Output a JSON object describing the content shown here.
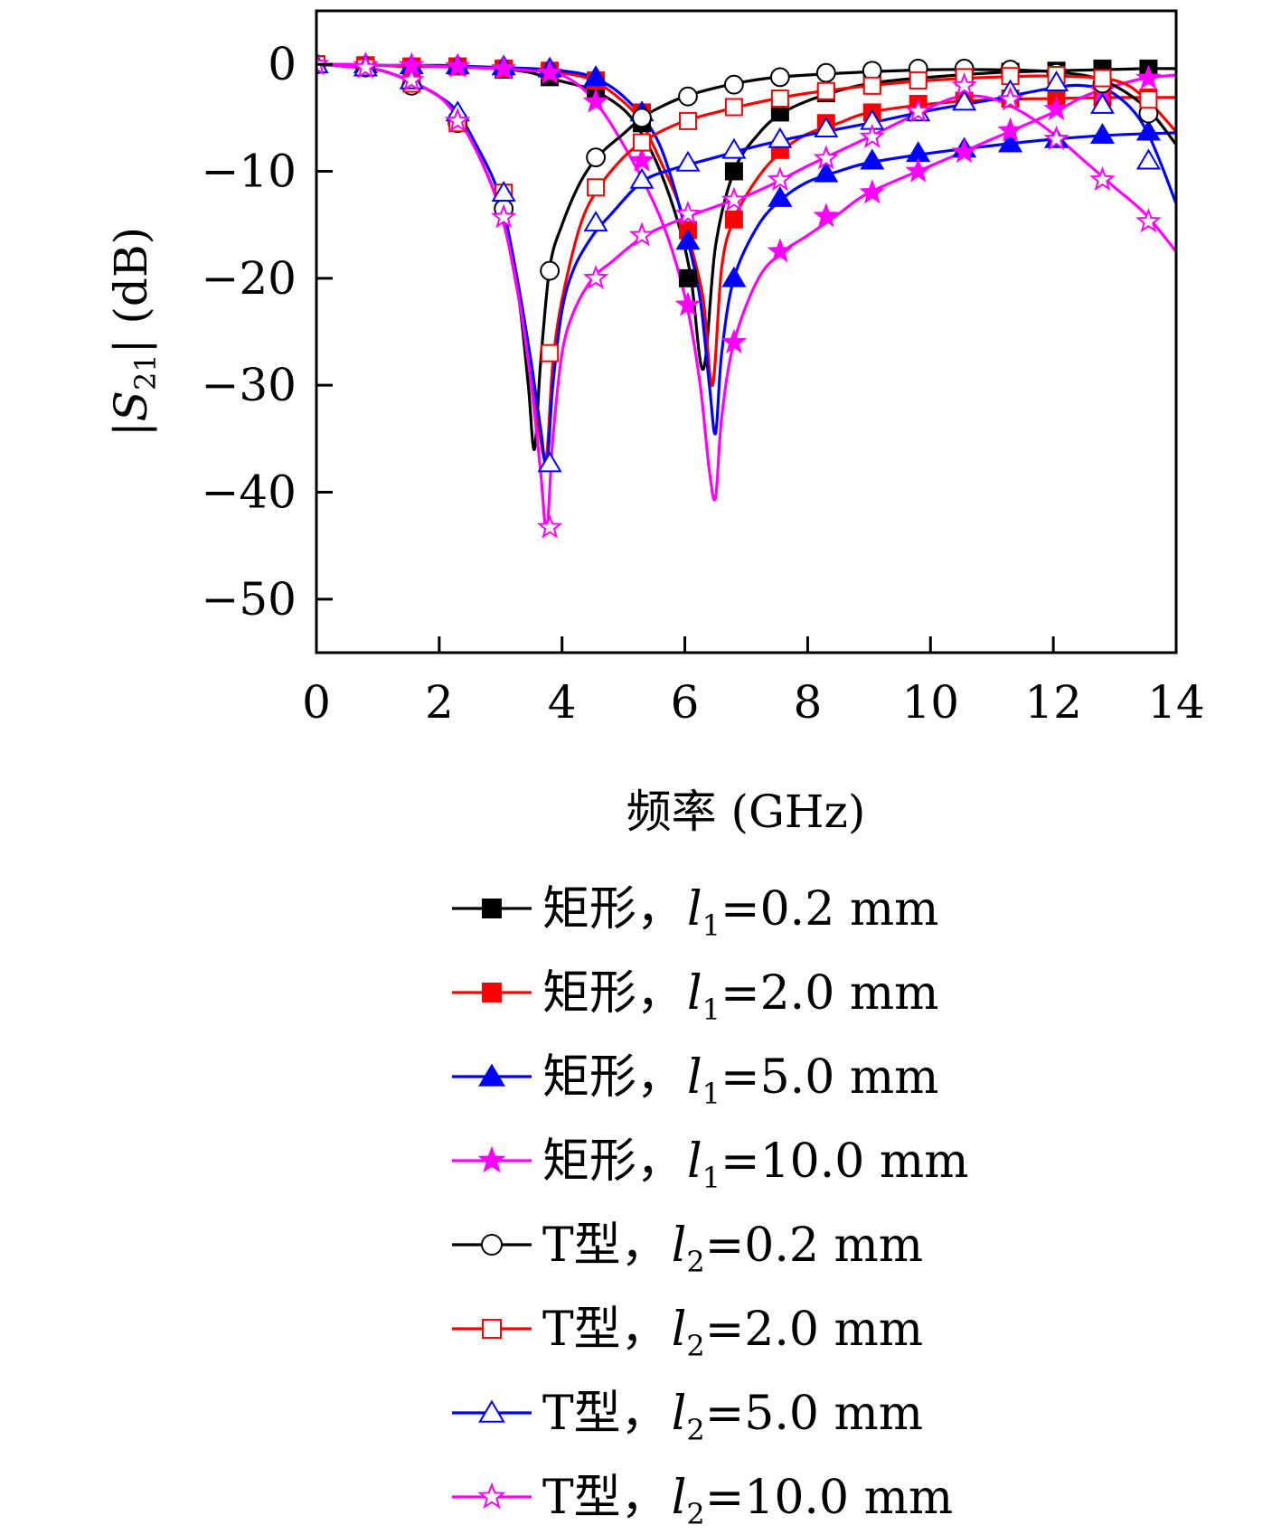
{
  "chart_data": {
    "type": "line",
    "xlabel": "频率 (GHz)",
    "ylabel_parts": {
      "left": "|",
      "sym": "S",
      "sub": "21",
      "right": "| (dB)"
    },
    "xlim": [
      0,
      14
    ],
    "ylim": [
      -55,
      5
    ],
    "xticks": [
      0,
      2,
      4,
      6,
      8,
      10,
      12,
      14
    ],
    "yticks": [
      0,
      -10,
      -20,
      -30,
      -40,
      -50
    ],
    "ytick_labels": [
      "0",
      "−10",
      "−20",
      "−30",
      "−40",
      "−50"
    ],
    "grid": false,
    "legend_position": "below",
    "series": [
      {
        "label_prefix": "矩形，",
        "param": "l",
        "param_sub": "1",
        "label_value": "=0.2 mm",
        "color": "#000000",
        "marker": "square",
        "filled": true,
        "x": [
          0,
          0.5,
          1,
          1.5,
          2,
          2.5,
          3,
          3.3,
          3.5,
          3.75,
          4,
          4.5,
          5,
          5.3,
          5.6,
          5.9,
          6.1,
          6.3,
          6.5,
          6.8,
          7.2,
          7.6,
          8.2,
          9,
          10,
          11,
          12,
          12.8,
          13.5,
          14
        ],
        "y": [
          0,
          -0.1,
          -0.1,
          -0.2,
          -0.2,
          -0.3,
          -0.4,
          -0.6,
          -0.8,
          -1.2,
          -1.6,
          -2.4,
          -4.2,
          -6.5,
          -10,
          -15,
          -20,
          -28.5,
          -17,
          -10,
          -6.5,
          -4.5,
          -3,
          -1.8,
          -1.2,
          -0.8,
          -0.6,
          -0.5,
          -0.4,
          -0.4
        ],
        "mx": [
          0,
          0.8,
          1.55,
          2.3,
          3.05,
          3.8,
          4.55,
          5.3,
          6.05,
          6.8,
          7.55,
          8.3,
          9.05,
          9.8,
          10.55,
          11.3,
          12.05,
          12.8,
          13.55
        ],
        "my": [
          0,
          -0.1,
          -0.2,
          -0.2,
          -0.5,
          -1.2,
          -2.4,
          -5.5,
          -20,
          -10,
          -4.5,
          -2.7,
          -1.8,
          -1.3,
          -0.9,
          -0.7,
          -0.6,
          -0.4,
          -0.4
        ]
      },
      {
        "label_prefix": "矩形，",
        "param": "l",
        "param_sub": "1",
        "label_value": "=2.0 mm",
        "color": "#ff0000",
        "marker": "square",
        "filled": true,
        "x": [
          0,
          0.5,
          1,
          1.5,
          2,
          2.5,
          3,
          3.5,
          4,
          4.5,
          5,
          5.3,
          5.6,
          5.9,
          6.1,
          6.3,
          6.45,
          6.6,
          6.8,
          7.2,
          7.6,
          8,
          8.5,
          9,
          10,
          11,
          12,
          13,
          14
        ],
        "y": [
          0,
          -0.1,
          -0.1,
          -0.2,
          -0.2,
          -0.3,
          -0.4,
          -0.5,
          -0.8,
          -1.5,
          -3.5,
          -5.5,
          -9,
          -13,
          -17,
          -22,
          -30,
          -19,
          -14.5,
          -10.5,
          -8,
          -6.5,
          -5.5,
          -4.5,
          -3.7,
          -3.3,
          -3.2,
          -3.1,
          -3.1
        ],
        "mx": [
          0,
          0.8,
          1.55,
          2.3,
          3.05,
          3.8,
          4.55,
          5.3,
          6.05,
          6.8,
          7.55,
          8.3,
          9.05,
          9.8,
          10.55,
          11.3,
          12.05,
          12.8,
          13.55
        ],
        "my": [
          0,
          -0.1,
          -0.2,
          -0.2,
          -0.4,
          -0.6,
          -1.5,
          -4.5,
          -15.5,
          -14.5,
          -8,
          -5.5,
          -4.5,
          -3.7,
          -3.4,
          -3.2,
          -3.2,
          -3.1,
          -3.1
        ]
      },
      {
        "label_prefix": "矩形，",
        "param": "l",
        "param_sub": "1",
        "label_value": "=5.0 mm",
        "color": "#0000ff",
        "marker": "triangle",
        "filled": true,
        "x": [
          0,
          0.5,
          1,
          1.5,
          2,
          2.5,
          3,
          3.5,
          4,
          4.5,
          5,
          5.5,
          5.8,
          6.05,
          6.25,
          6.4,
          6.5,
          6.6,
          6.8,
          7.2,
          7.6,
          8,
          8.5,
          9,
          10,
          11,
          12,
          13,
          14
        ],
        "y": [
          0,
          0,
          -0.1,
          -0.1,
          -0.1,
          -0.2,
          -0.3,
          -0.4,
          -0.6,
          -1.2,
          -3,
          -6.5,
          -11,
          -16.5,
          -22,
          -30,
          -34.5,
          -27,
          -20,
          -15,
          -12.5,
          -11,
          -10,
          -9.2,
          -8.3,
          -7.6,
          -7,
          -6.6,
          -6.4
        ],
        "mx": [
          0,
          0.8,
          1.55,
          2.3,
          3.05,
          3.8,
          4.55,
          5.3,
          6.05,
          6.8,
          7.55,
          8.3,
          9.05,
          9.8,
          10.55,
          11.3,
          12.05,
          12.8,
          13.55
        ],
        "my": [
          0,
          0,
          -0.1,
          -0.1,
          -0.2,
          -0.4,
          -1.2,
          -4.5,
          -16.5,
          -20,
          -12.5,
          -10.2,
          -9,
          -8.3,
          -7.9,
          -7.4,
          -7,
          -6.6,
          -6.3
        ]
      },
      {
        "label_prefix": "矩形，",
        "param": "l",
        "param_sub": "1",
        "label_value": "=10.0 mm",
        "color": "#ff00ff",
        "marker": "star",
        "filled": true,
        "x": [
          0,
          0.5,
          1,
          1.5,
          2,
          2.5,
          3,
          3.5,
          4,
          4.5,
          5,
          5.5,
          5.8,
          6.05,
          6.25,
          6.4,
          6.5,
          6.6,
          6.8,
          7.2,
          7.6,
          8,
          8.5,
          9,
          10,
          11,
          12,
          12.5,
          13,
          13.5,
          14
        ],
        "y": [
          0,
          0,
          -0.1,
          -0.1,
          -0.2,
          -0.3,
          -0.4,
          -0.6,
          -1,
          -3.2,
          -7.5,
          -13,
          -17.5,
          -23,
          -30,
          -38,
          -40.5,
          -33,
          -26,
          -20,
          -17.5,
          -16,
          -14,
          -12,
          -9.5,
          -7,
          -4.5,
          -3,
          -2,
          -1.3,
          -1
        ],
        "mx": [
          0,
          0.8,
          1.55,
          2.3,
          3.05,
          3.8,
          4.55,
          5.3,
          6.05,
          6.8,
          7.55,
          8.3,
          9.05,
          9.8,
          10.55,
          11.3,
          12.05,
          12.8,
          13.55
        ],
        "my": [
          0,
          -0.1,
          -0.1,
          -0.2,
          -0.4,
          -0.8,
          -3.5,
          -9,
          -22.5,
          -26,
          -17.5,
          -14.2,
          -12,
          -10,
          -8.2,
          -6.2,
          -4.2,
          -2.5,
          -1.3
        ]
      },
      {
        "label_prefix": "T型，",
        "param": "l",
        "param_sub": "2",
        "label_value": "=0.2 mm",
        "color": "#000000",
        "marker": "circle",
        "filled": false,
        "x": [
          0,
          0.5,
          1,
          1.5,
          2,
          2.3,
          2.6,
          2.9,
          3.1,
          3.3,
          3.45,
          3.55,
          3.65,
          3.8,
          4,
          4.3,
          4.6,
          5,
          5.3,
          5.6,
          6,
          6.5,
          7,
          7.5,
          8,
          9,
          10,
          11,
          12,
          12.8,
          13.5,
          14
        ],
        "y": [
          0,
          -0.2,
          -0.5,
          -1.5,
          -3,
          -5,
          -8,
          -12,
          -16,
          -22,
          -30,
          -36,
          -28,
          -19,
          -15,
          -11,
          -8.5,
          -6.5,
          -5,
          -4,
          -3,
          -2.2,
          -1.6,
          -1.2,
          -1,
          -0.7,
          -0.5,
          -0.5,
          -0.7,
          -1.5,
          -4,
          -7.5
        ],
        "mx": [
          0,
          0.8,
          1.55,
          2.3,
          3.05,
          3.8,
          4.55,
          5.3,
          6.05,
          6.8,
          7.55,
          8.3,
          9.05,
          9.8,
          10.55,
          11.3,
          12.05,
          12.8,
          13.55
        ],
        "my": [
          0,
          -0.3,
          -2,
          -5.5,
          -13.5,
          -19.3,
          -8.7,
          -5,
          -3,
          -1.9,
          -1.2,
          -0.8,
          -0.6,
          -0.4,
          -0.4,
          -0.5,
          -0.8,
          -1.8,
          -4.6
        ]
      },
      {
        "label_prefix": "T型，",
        "param": "l",
        "param_sub": "2",
        "label_value": "=2.0 mm",
        "color": "#ff0000",
        "marker": "square",
        "filled": false,
        "x": [
          0,
          0.5,
          1,
          1.5,
          2,
          2.3,
          2.6,
          2.9,
          3.1,
          3.3,
          3.5,
          3.65,
          3.75,
          3.85,
          4,
          4.3,
          4.6,
          5,
          5.3,
          5.6,
          6,
          6.5,
          7,
          7.5,
          8,
          9,
          10,
          11,
          12,
          13,
          13.5,
          14
        ],
        "y": [
          0,
          -0.2,
          -0.5,
          -1.5,
          -3,
          -5,
          -8,
          -12,
          -16,
          -22,
          -28,
          -35,
          -36.5,
          -28,
          -22,
          -15,
          -11.5,
          -8.7,
          -7.3,
          -6.3,
          -5.3,
          -4.5,
          -3.8,
          -3.2,
          -2.7,
          -2,
          -1.5,
          -1.2,
          -1.1,
          -1.5,
          -3.2,
          -6.3
        ],
        "mx": [
          0,
          0.8,
          1.55,
          2.3,
          3.05,
          3.8,
          4.55,
          5.3,
          6.05,
          6.8,
          7.55,
          8.3,
          9.05,
          9.8,
          10.55,
          11.3,
          12.05,
          12.8,
          13.55
        ],
        "my": [
          0,
          -0.3,
          -1.8,
          -5.5,
          -12,
          -27,
          -11.5,
          -7.3,
          -5.3,
          -4,
          -3.2,
          -2.5,
          -2,
          -1.5,
          -1.2,
          -1.1,
          -1,
          -1.3,
          -3.3
        ]
      },
      {
        "label_prefix": "T型，",
        "param": "l",
        "param_sub": "2",
        "label_value": "=5.0 mm",
        "color": "#0000ff",
        "marker": "triangle",
        "filled": false,
        "x": [
          0,
          0.5,
          1,
          1.5,
          2,
          2.3,
          2.6,
          2.9,
          3.1,
          3.3,
          3.5,
          3.65,
          3.75,
          3.85,
          4,
          4.2,
          4.5,
          4.8,
          5.3,
          5.8,
          6.5,
          7,
          7.5,
          8,
          9,
          10,
          11,
          12,
          12.5,
          13,
          13.5,
          14
        ],
        "y": [
          0,
          -0.2,
          -0.5,
          -1.5,
          -3,
          -4.5,
          -7.5,
          -11,
          -15,
          -21,
          -28,
          -34,
          -37.5,
          -30,
          -23,
          -19,
          -16,
          -14,
          -11,
          -9.8,
          -8.7,
          -7.9,
          -7.2,
          -6.6,
          -5.5,
          -4.3,
          -3.3,
          -2.2,
          -2,
          -2.8,
          -6,
          -13
        ],
        "mx": [
          0,
          0.8,
          1.55,
          2.3,
          3.05,
          3.8,
          4.55,
          5.3,
          6.05,
          6.8,
          7.55,
          8.3,
          9.05,
          9.8,
          10.55,
          11.3,
          12.05,
          12.8,
          13.55
        ],
        "my": [
          0,
          -0.3,
          -1.5,
          -4.5,
          -12,
          -37.3,
          -14.8,
          -10.8,
          -9.2,
          -8,
          -7,
          -6,
          -5.3,
          -4.5,
          -3.5,
          -2.5,
          -1.7,
          -3.8,
          -9
        ]
      },
      {
        "label_prefix": "T型，",
        "param": "l",
        "param_sub": "2",
        "label_value": "=10.0 mm",
        "color": "#ff00ff",
        "marker": "star",
        "filled": false,
        "x": [
          0,
          0.5,
          1,
          1.5,
          2,
          2.3,
          2.6,
          2.9,
          3.1,
          3.3,
          3.5,
          3.65,
          3.75,
          3.85,
          4,
          4.2,
          4.5,
          4.8,
          5.3,
          5.8,
          6.5,
          7,
          7.5,
          8,
          9,
          10,
          10.5,
          11,
          11.5,
          12,
          12.5,
          13,
          13.5,
          14
        ],
        "y": [
          0,
          -0.2,
          -0.5,
          -1.5,
          -3,
          -5,
          -8,
          -12,
          -16,
          -22,
          -30,
          -38,
          -43.5,
          -35,
          -27,
          -23,
          -20,
          -18.5,
          -16.2,
          -14.8,
          -13.3,
          -12.3,
          -11,
          -9.5,
          -6.8,
          -4,
          -3,
          -3.2,
          -4.5,
          -6.5,
          -9,
          -11.5,
          -14,
          -17.5
        ],
        "mx": [
          0,
          0.8,
          1.55,
          2.3,
          3.05,
          3.8,
          4.55,
          5.3,
          6.05,
          6.8,
          7.55,
          8.3,
          9.05,
          9.8,
          10.55,
          11.3,
          12.05,
          12.8,
          13.55
        ],
        "my": [
          0,
          -0.3,
          -1.5,
          -5.3,
          -14.3,
          -43.3,
          -20,
          -16,
          -14,
          -12.7,
          -10.8,
          -8.8,
          -6.8,
          -4.4,
          -2,
          -3.3,
          -7,
          -10.8,
          -14.7
        ]
      }
    ]
  }
}
